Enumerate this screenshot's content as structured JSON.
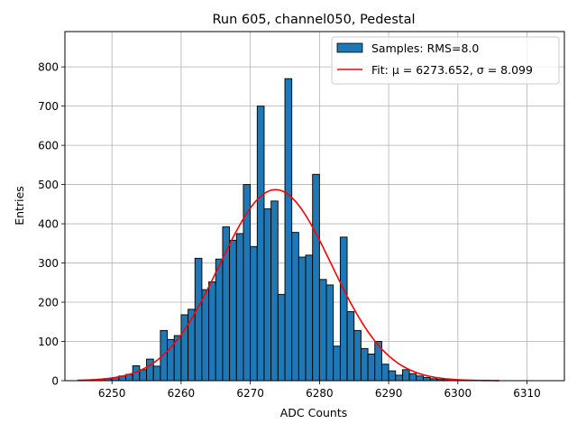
{
  "chart_data": {
    "type": "bar",
    "title": "Run 605, channel050, Pedestal",
    "xlabel": "ADC Counts",
    "ylabel": "Entries",
    "xlim": [
      6243.2,
      6315.4
    ],
    "ylim": [
      0,
      890
    ],
    "xticks": [
      6250,
      6260,
      6270,
      6280,
      6290,
      6300,
      6310
    ],
    "yticks": [
      0,
      100,
      200,
      300,
      400,
      500,
      600,
      700,
      800
    ],
    "grid": true,
    "legend_position": "top-right",
    "histogram": {
      "name": "Samples: RMS=8.0",
      "bin_start": 6247,
      "bin_width": 1,
      "counts": [
        2,
        3,
        5,
        8,
        12,
        16,
        38,
        28,
        55,
        37,
        128,
        105,
        115,
        168,
        182,
        312,
        232,
        252,
        310,
        392,
        358,
        375,
        500,
        342,
        700,
        438,
        458,
        220,
        770,
        378,
        315,
        320,
        526,
        258,
        244,
        88,
        366,
        176,
        128,
        82,
        68,
        100,
        42,
        25,
        14,
        28,
        18,
        12,
        8,
        5,
        3,
        2
      ],
      "color": "#1f77b4"
    },
    "fit": {
      "name": "Fit: μ = 6273.652, σ = 8.099",
      "mu": 6273.652,
      "sigma": 8.099,
      "amplitude": 487,
      "x_range": [
        6245,
        6306
      ],
      "color": "#ff0000"
    }
  }
}
